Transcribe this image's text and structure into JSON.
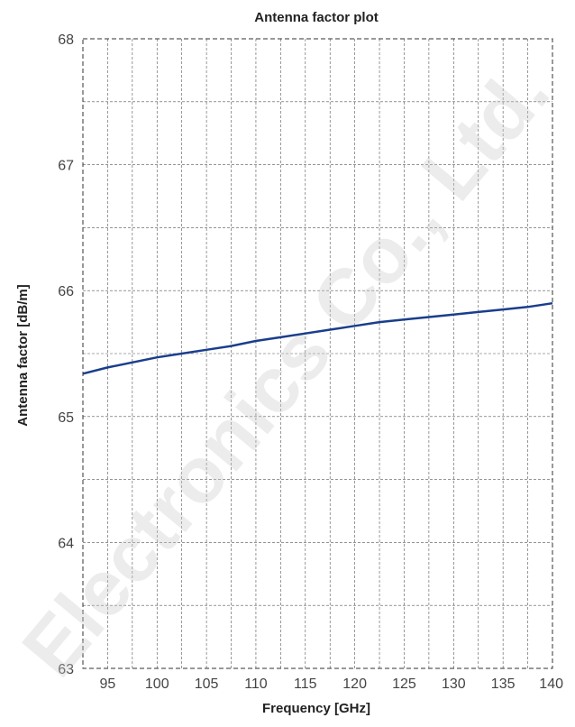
{
  "chart_data": {
    "type": "line",
    "title": "Antenna factor plot",
    "xlabel": "Frequency [GHz]",
    "ylabel": "Antenna factor [dB/m]",
    "xlim": [
      92.5,
      140
    ],
    "ylim": [
      63,
      68
    ],
    "x_ticks": [
      95,
      100,
      105,
      110,
      115,
      120,
      125,
      130,
      135,
      140
    ],
    "y_ticks": [
      63,
      64,
      65,
      66,
      67,
      68
    ],
    "grid": true,
    "series": [
      {
        "color": "#1a3e8c",
        "x": [
          92.5,
          95,
          97.5,
          100,
          102.5,
          105,
          107.5,
          110,
          112.5,
          115,
          117.5,
          120,
          122.5,
          125,
          127.5,
          130,
          132.5,
          135,
          137.5,
          140
        ],
        "y": [
          65.34,
          65.39,
          65.43,
          65.47,
          65.5,
          65.53,
          65.56,
          65.6,
          65.63,
          65.66,
          65.69,
          65.72,
          65.75,
          65.77,
          65.79,
          65.81,
          65.83,
          65.85,
          65.87,
          65.9
        ]
      }
    ]
  },
  "watermark": "Electronics Co., Ltd."
}
